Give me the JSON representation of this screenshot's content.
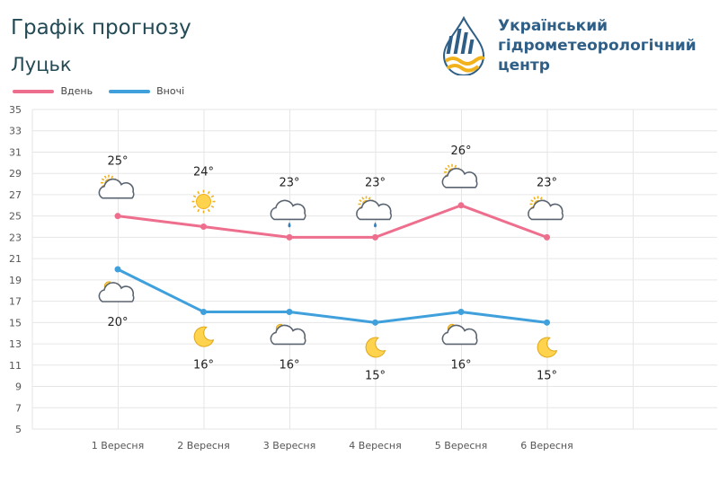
{
  "header": {
    "title": "Графік прогнозу",
    "city": "Луцьк",
    "org_line1": "Український",
    "org_line2": "гідрометеорологічний",
    "org_line3": "центр"
  },
  "colors": {
    "day": "#ee6e8d",
    "night": "#3fa0dc",
    "grid": "#e6e6e6",
    "text": "#555555"
  },
  "chart_data": {
    "type": "line",
    "categories": [
      "1 Вересня",
      "2 Вересня",
      "3 Вересня",
      "4 Вересня",
      "5 Вересня",
      "6 Вересня"
    ],
    "series": [
      {
        "name": "Вдень",
        "values": [
          25,
          24,
          23,
          23,
          26,
          23
        ],
        "labels": [
          "25°",
          "24°",
          "23°",
          "23°",
          "26°",
          "23°"
        ],
        "icons": [
          "sun-cloud-icon",
          "sun-icon",
          "cloud-rain-icon",
          "sun-cloud-rain-icon",
          "sun-cloud-icon",
          "sun-cloud-icon"
        ]
      },
      {
        "name": "Вночі",
        "values": [
          20,
          16,
          16,
          15,
          16,
          15
        ],
        "labels": [
          "20°",
          "16°",
          "16°",
          "15°",
          "16°",
          "15°"
        ],
        "icons": [
          "moon-cloud-icon",
          "moon-icon",
          "moon-cloud-icon",
          "moon-icon",
          "moon-cloud-icon",
          "moon-icon"
        ]
      }
    ],
    "yticks": [
      "5",
      "7",
      "9",
      "11",
      "13",
      "15",
      "17",
      "19",
      "21",
      "23",
      "25",
      "27",
      "29",
      "31",
      "33",
      "35"
    ],
    "ylim": [
      5,
      35
    ],
    "grid": true,
    "legend_position": "top-left"
  }
}
